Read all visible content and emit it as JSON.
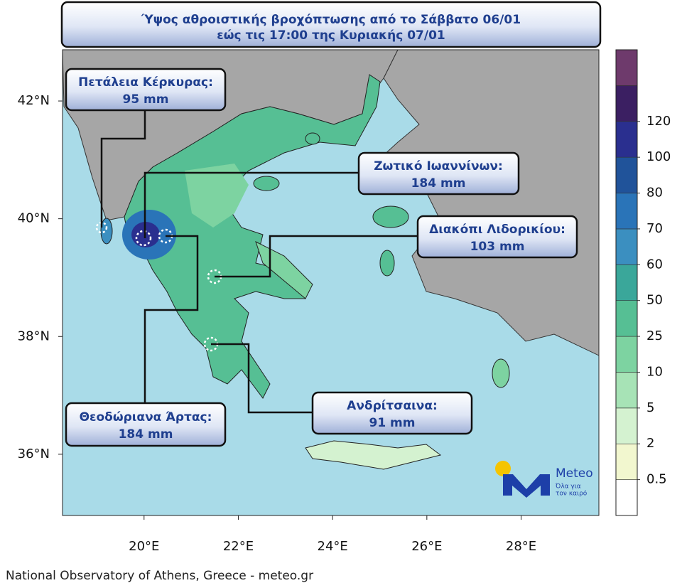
{
  "map": {
    "title": [
      "Ύψος αθροιστικής βροχόπτωσης από το Σάββατο 06/01",
      "εώς τις 17:00 της Κυριακής 07/01"
    ],
    "lon_range": [
      18.27,
      29.65
    ],
    "lat_range": [
      34.96,
      42.87
    ],
    "xticks": [
      {
        "value": 20,
        "label": "20°E"
      },
      {
        "value": 22,
        "label": "22°E"
      },
      {
        "value": 24,
        "label": "24°E"
      },
      {
        "value": 26,
        "label": "26°E"
      },
      {
        "value": 28,
        "label": "28°E"
      }
    ],
    "yticks": [
      {
        "value": 42,
        "label": "42°N"
      },
      {
        "value": 40,
        "label": "40°N"
      },
      {
        "value": 38,
        "label": "38°N"
      },
      {
        "value": 36,
        "label": "36°N"
      }
    ],
    "callouts": [
      {
        "name": "Πετάλεια Κέρκυρας:",
        "value": "95 mm"
      },
      {
        "name": "Ζωτικό Ιωαννίνων:",
        "value": "184 mm"
      },
      {
        "name": "Διακόπι Λιδορικίου:",
        "value": "103 mm"
      },
      {
        "name": "Θεοδώριανα Άρτας:",
        "value": "184 mm"
      },
      {
        "name": "Ανδρίτσαινα:",
        "value": "91 mm"
      }
    ],
    "colorbar": {
      "levels": [
        0.5,
        2,
        5,
        10,
        25,
        50,
        60,
        70,
        80,
        100,
        120
      ],
      "colors": [
        "#ffffff",
        "#f2f7cf",
        "#d4f2d0",
        "#a7e3b6",
        "#7dd3a1",
        "#56bf94",
        "#3aa79a",
        "#3b8fc0",
        "#2a74b8",
        "#20539a",
        "#2a2f8f",
        "#3b1f62",
        "#6e3a6c"
      ]
    },
    "logo": {
      "brand": "Meteo",
      "tagline": [
        "Όλα για",
        "τον καιρό"
      ]
    },
    "footer": "National Observatory of Athens, Greece - meteo.gr"
  }
}
